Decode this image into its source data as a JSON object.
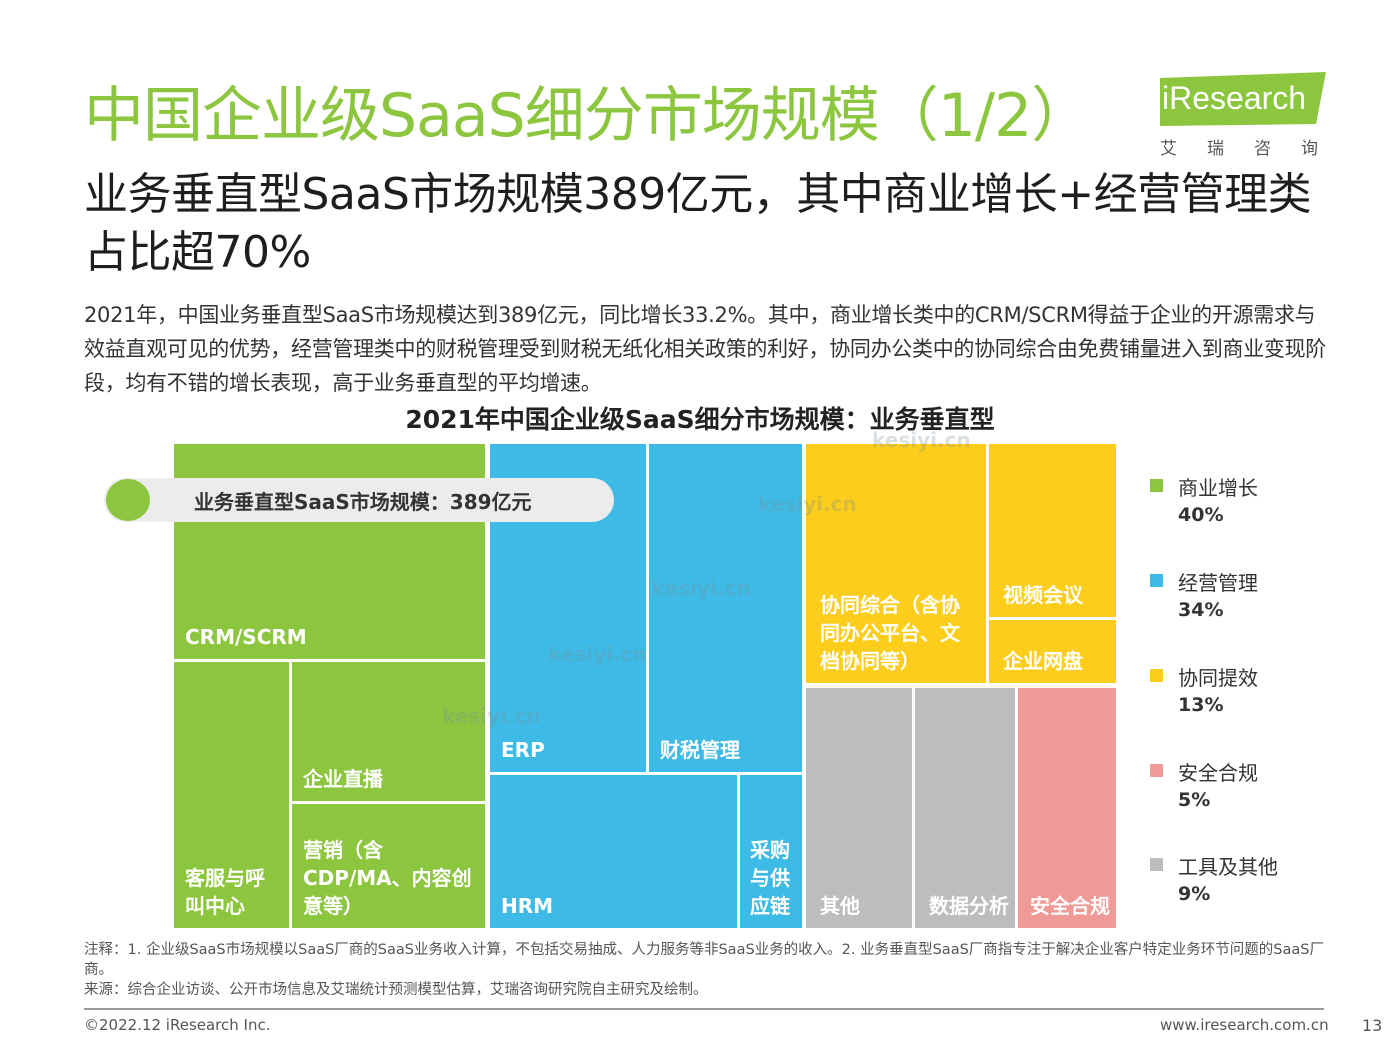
{
  "title": "中国企业级SaaS细分市场规模（1/2）",
  "subtitle": "业务垂直型SaaS市场规模389亿元，其中商业增长+经营管理类占比超70%",
  "body": "2021年，中国业务垂直型SaaS市场规模达到389亿元，同比增长33.2%。其中，商业增长类中的CRM/SCRM得益于企业的开源需求与效益直观可见的优势，经营管理类中的财税管理受到财税无纸化相关政策的利好，协同办公类中的协同综合由免费铺量进入到商业变现阶段，均有不错的增长表现，高于业务垂直型的平均增速。",
  "logo": {
    "word": "iResearch",
    "cn": "艾瑞咨询",
    "color": "#8cc63f"
  },
  "watermark": "kesiyi.cn",
  "chart_data": {
    "type": "treemap",
    "title": "2021年中国企业级SaaS细分市场规模：业务垂直型",
    "callout": "业务垂直型SaaS市场规模：389亿元",
    "legend_position": "right",
    "groups": [
      {
        "name": "商业增长",
        "value_pct": 40,
        "color": "#8cc63f",
        "tiles": [
          {
            "label": "CRM/SCRM"
          },
          {
            "label": "客服与呼叫中心"
          },
          {
            "label": "企业直播"
          },
          {
            "label": "营销（含CDP/MA、内容创意等）"
          }
        ]
      },
      {
        "name": "经营管理",
        "value_pct": 34,
        "color": "#3dbbe6",
        "tiles": [
          {
            "label": "ERP"
          },
          {
            "label": "财税管理"
          },
          {
            "label": "HRM"
          },
          {
            "label": "采购与供应链"
          }
        ]
      },
      {
        "name": "协同提效",
        "value_pct": 13,
        "color": "#fccd1b",
        "tiles": [
          {
            "label": "协同综合（含协同办公平台、文档协同等）"
          },
          {
            "label": "视频会议"
          },
          {
            "label": "企业网盘"
          }
        ]
      },
      {
        "name": "安全合规",
        "value_pct": 5,
        "color": "#f09a98",
        "tiles": [
          {
            "label": "安全合规"
          }
        ]
      },
      {
        "name": "工具及其他",
        "value_pct": 9,
        "color": "#bdbdbd",
        "tiles": [
          {
            "label": "其他"
          },
          {
            "label": "数据分析"
          }
        ]
      }
    ],
    "legend": [
      {
        "name": "商业增长",
        "pct": "40%",
        "color": "#8cc63f"
      },
      {
        "name": "经营管理",
        "pct": "34%",
        "color": "#3dbbe6"
      },
      {
        "name": "协同提效",
        "pct": "13%",
        "color": "#fccd1b"
      },
      {
        "name": "安全合规",
        "pct": "5%",
        "color": "#f09a98"
      },
      {
        "name": "工具及其他",
        "pct": "9%",
        "color": "#bdbdbd"
      }
    ]
  },
  "notes": {
    "line1": "注释：1. 企业级SaaS市场规模以SaaS厂商的SaaS业务收入计算，不包括交易抽成、人力服务等非SaaS业务的收入。2. 业务垂直型SaaS厂商指专注于解决企业客户特定业务环节问题的SaaS厂商。",
    "line2": "来源：综合企业访谈、公开市场信息及艾瑞统计预测模型估算，艾瑞咨询研究院自主研究及绘制。"
  },
  "footer": {
    "copyright": "©2022.12 iResearch Inc.",
    "url": "www.iresearch.com.cn",
    "page": "13"
  }
}
